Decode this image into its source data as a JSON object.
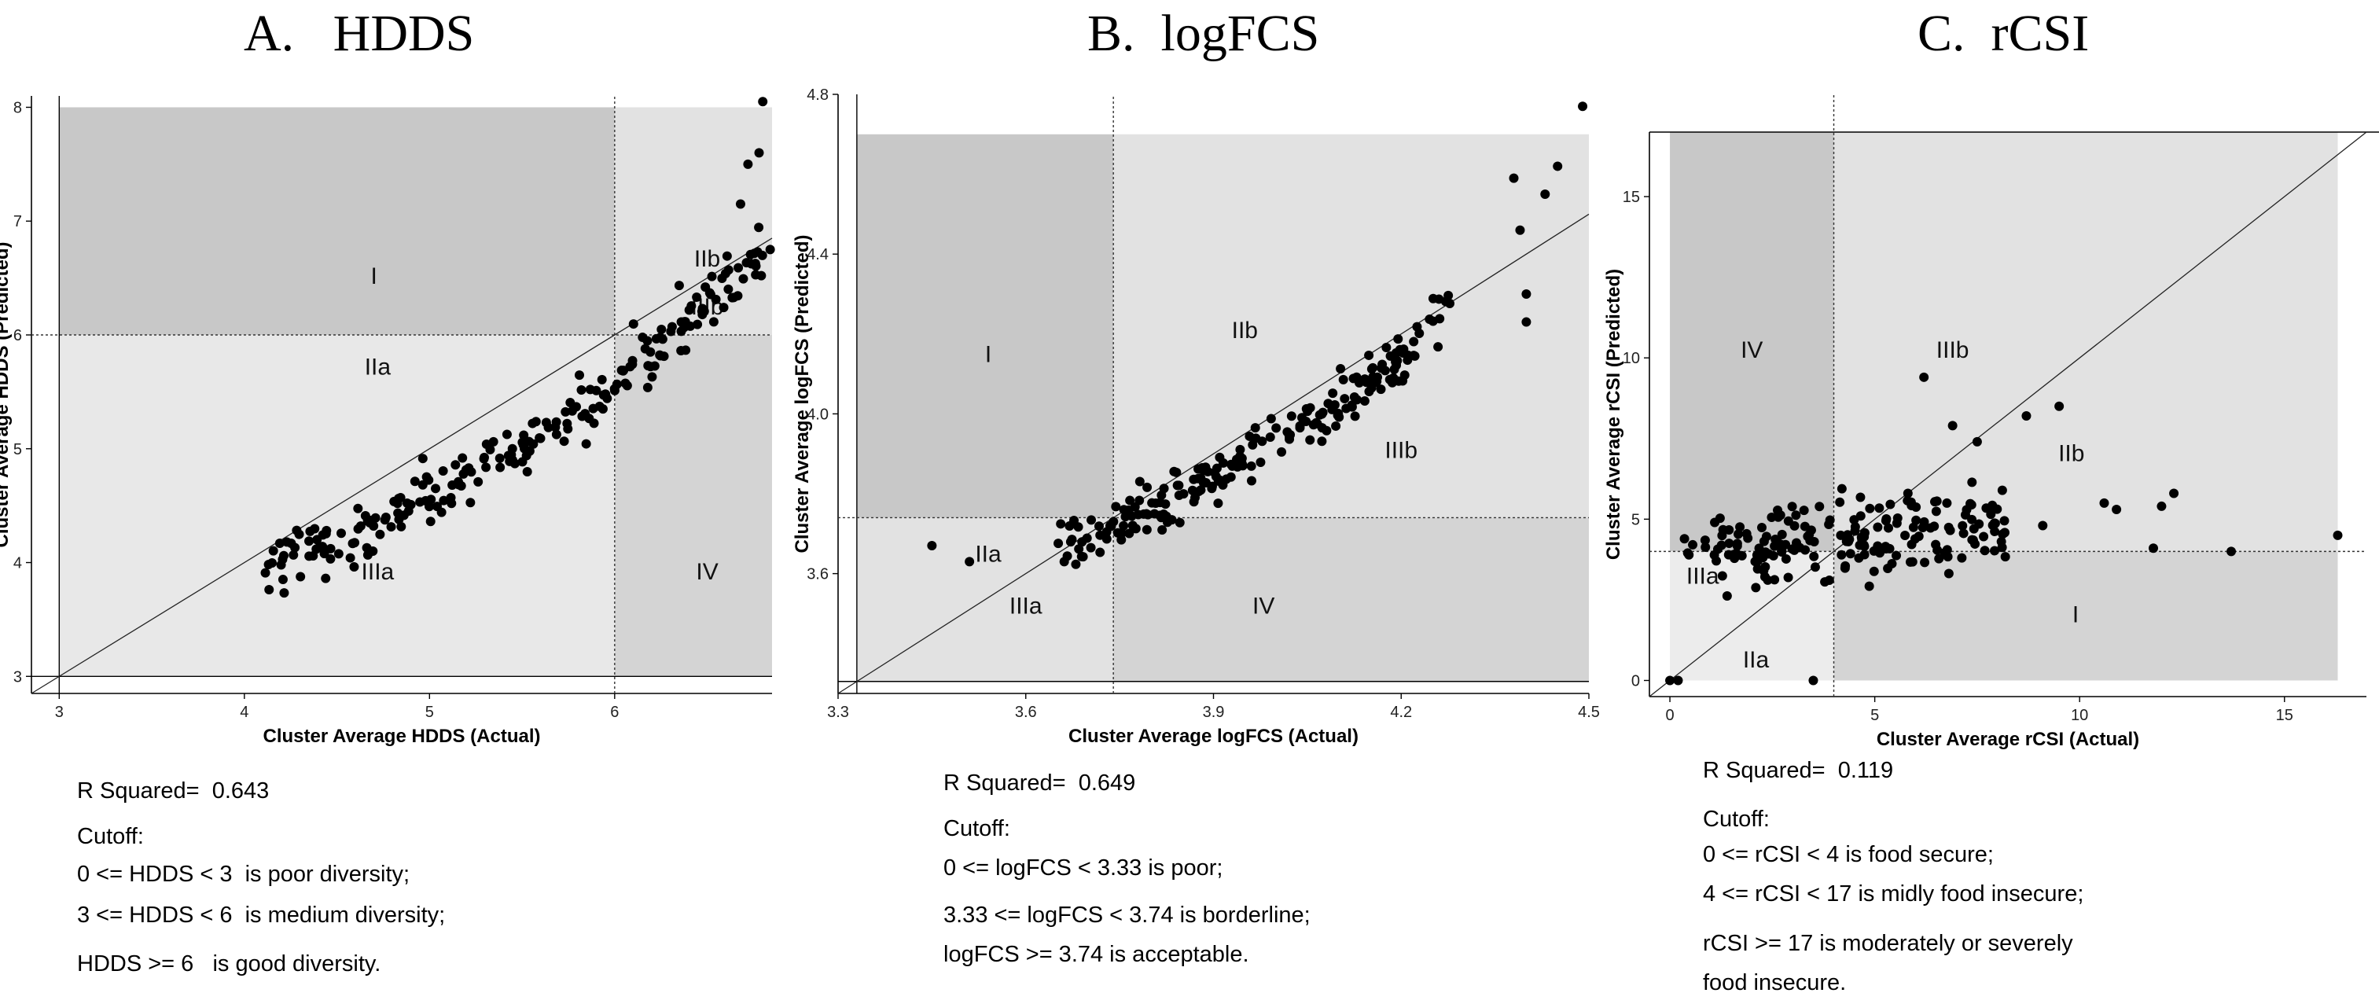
{
  "chart_data": [
    {
      "type": "scatter",
      "title": "A.   HDDS",
      "xlabel": "Cluster Average HDDS (Actual)",
      "ylabel": "Cluster Average HDDS (Predicted)",
      "xlim": [
        2.85,
        6.85
      ],
      "ylim": [
        2.85,
        8.1
      ],
      "xticks": [
        3,
        4,
        5,
        6
      ],
      "yticks": [
        3,
        4,
        5,
        6,
        7,
        8
      ],
      "cutoff": 6,
      "regions": [
        {
          "label": "I",
          "x0": 3,
          "x1": 6,
          "y0": 6,
          "y1": 8,
          "fill": "#c8c8c8",
          "lx": 4.7,
          "ly": 6.45
        },
        {
          "label": "IIa",
          "x0": 3,
          "x1": 6,
          "y0": 3,
          "y1": 6,
          "fill": "#e2e2e2",
          "lx": 4.72,
          "ly": 5.65
        },
        {
          "label": "IIIa",
          "x0": 3,
          "x1": 6,
          "y0": 3,
          "y1": 6,
          "fill": "none",
          "lx": 4.72,
          "ly": 3.85
        },
        {
          "label": "IIb",
          "x0": 6,
          "x1": 6.85,
          "y0": 6,
          "y1": 8,
          "fill": "#e2e2e2",
          "lx": 6.5,
          "ly": 6.6
        },
        {
          "label": "IIIb",
          "x0": 6,
          "x1": 6.85,
          "y0": 6,
          "y1": 8,
          "fill": "none",
          "lx": 6.5,
          "ly": 6.18
        },
        {
          "label": "IV",
          "x0": 6,
          "x1": 6.85,
          "y0": 3,
          "y1": 6,
          "fill": "#d4d4d4",
          "lx": 6.5,
          "ly": 3.85
        }
      ],
      "gen": {
        "n": 230,
        "seed": 7,
        "xmin": 4.1,
        "xmax": 6.8,
        "slope": 0.72,
        "intercept": 0.95,
        "noise": 0.25,
        "curve": 0.35
      },
      "extra_points": [
        [
          6.8,
          8.05
        ],
        [
          6.78,
          7.6
        ],
        [
          6.72,
          7.5
        ],
        [
          6.68,
          7.15
        ],
        [
          6.84,
          6.75
        ]
      ],
      "notes": [
        "R Squared=  0.643",
        "Cutoff:",
        "0 <= HDDS < 3  is poor diversity;",
        "3 <= HDDS < 6  is medium diversity;",
        "HDDS >= 6   is good diversity."
      ]
    },
    {
      "type": "scatter",
      "title": "B.  logFCS",
      "xlabel": "Cluster Average logFCS (Actual)",
      "ylabel": "Cluster Average logFCS (Predicted)",
      "xlim": [
        3.3,
        4.5
      ],
      "ylim": [
        3.3,
        4.8
      ],
      "xticks": [
        3.3,
        3.6,
        3.9,
        4.2,
        4.5
      ],
      "yticks": [
        3.6,
        4.0,
        4.4,
        4.8
      ],
      "cutoff": 3.74,
      "regions": [
        {
          "label": "I",
          "x0": 3.33,
          "x1": 3.74,
          "y0": 3.74,
          "y1": 4.7,
          "fill": "#c8c8c8",
          "lx": 3.54,
          "ly": 4.13
        },
        {
          "label": "IIa",
          "x0": 3.33,
          "x1": 3.74,
          "y0": 3.33,
          "y1": 3.74,
          "fill": "#e2e2e2",
          "lx": 3.54,
          "ly": 3.63
        },
        {
          "label": "IIIa",
          "x0": 3.33,
          "x1": 3.74,
          "y0": 3.33,
          "y1": 3.74,
          "fill": "none",
          "lx": 3.6,
          "ly": 3.5
        },
        {
          "label": "IIb",
          "x0": 3.74,
          "x1": 4.5,
          "y0": 3.74,
          "y1": 4.7,
          "fill": "#e2e2e2",
          "lx": 3.95,
          "ly": 4.19
        },
        {
          "label": "IIIb",
          "x0": 3.74,
          "x1": 4.5,
          "y0": 3.74,
          "y1": 4.7,
          "fill": "none",
          "lx": 4.2,
          "ly": 3.89
        },
        {
          "label": "IV",
          "x0": 3.74,
          "x1": 4.5,
          "y0": 3.33,
          "y1": 3.74,
          "fill": "#d4d4d4",
          "lx": 3.98,
          "ly": 3.5
        }
      ],
      "gen": {
        "n": 215,
        "seed": 19,
        "xmin": 3.65,
        "xmax": 4.28,
        "slope": 0.7,
        "intercept": 1.1,
        "noise": 0.07,
        "curve": 0.25
      },
      "extra_points": [
        [
          3.45,
          3.67
        ],
        [
          3.51,
          3.63
        ],
        [
          4.49,
          4.77
        ],
        [
          4.45,
          4.62
        ],
        [
          4.43,
          4.55
        ],
        [
          4.38,
          4.59
        ],
        [
          4.39,
          4.46
        ],
        [
          4.4,
          4.3
        ],
        [
          4.4,
          4.23
        ]
      ],
      "notes": [
        "R Squared=  0.649",
        "Cutoff:",
        "0 <= logFCS < 3.33 is poor;",
        "3.33 <= logFCS < 3.74 is borderline;",
        "logFCS >= 3.74 is acceptable."
      ]
    },
    {
      "type": "scatter",
      "title": "C.  rCSI",
      "xlabel": "Cluster Average rCSI (Actual)",
      "ylabel": "Cluster Average rCSI (Predicted)",
      "xlim": [
        -0.5,
        17
      ],
      "ylim": [
        -0.5,
        17
      ],
      "xticks": [
        0,
        5,
        10,
        15
      ],
      "yticks": [
        0,
        5,
        10,
        15
      ],
      "cutoff": 4,
      "regions": [
        {
          "label": "IV",
          "x0": 0,
          "x1": 4,
          "y0": 4,
          "y1": 17,
          "fill": "#c8c8c8",
          "lx": 2,
          "ly": 10
        },
        {
          "label": "IIIa",
          "x0": 0,
          "x1": 4,
          "y0": 0,
          "y1": 4,
          "fill": "#ececec",
          "lx": 0.8,
          "ly": 3
        },
        {
          "label": "IIa",
          "x0": 0,
          "x1": 4,
          "y0": 0,
          "y1": 4,
          "fill": "none",
          "lx": 2.1,
          "ly": 0.4
        },
        {
          "label": "IIIb",
          "x0": 4,
          "x1": 16.3,
          "y0": 4,
          "y1": 17,
          "fill": "#e2e2e2",
          "lx": 6.9,
          "ly": 10
        },
        {
          "label": "IIb",
          "x0": 4,
          "x1": 16.3,
          "y0": 4,
          "y1": 17,
          "fill": "none",
          "lx": 9.8,
          "ly": 6.8
        },
        {
          "label": "I",
          "x0": 4,
          "x1": 16.3,
          "y0": 0,
          "y1": 4,
          "fill": "#d4d4d4",
          "lx": 9.9,
          "ly": 1.8
        }
      ],
      "gen": {
        "n": 195,
        "seed": 31,
        "xmin": 0.3,
        "xmax": 8.2,
        "slope": 0.12,
        "intercept": 3.9,
        "noise": 1.2,
        "curve": 0
      },
      "extra_points": [
        [
          0,
          0
        ],
        [
          0.2,
          0
        ],
        [
          3.5,
          0
        ],
        [
          16.3,
          4.5
        ],
        [
          13.7,
          4
        ],
        [
          12.3,
          5.8
        ],
        [
          12,
          5.4
        ],
        [
          11.8,
          4.1
        ],
        [
          10.9,
          5.3
        ],
        [
          10.6,
          5.5
        ],
        [
          9.5,
          8.5
        ],
        [
          8.7,
          8.2
        ],
        [
          6.2,
          9.4
        ],
        [
          6.9,
          7.9
        ],
        [
          7.5,
          7.4
        ],
        [
          9.1,
          4.8
        ]
      ],
      "notes": [
        "R Squared=  0.119",
        "Cutoff:",
        "0 <= rCSI < 4 is food secure;",
        "4 <= rCSI < 17 is midly food insecure;",
        "rCSI >= 17 is moderately or severely",
        "food insecure."
      ]
    }
  ]
}
